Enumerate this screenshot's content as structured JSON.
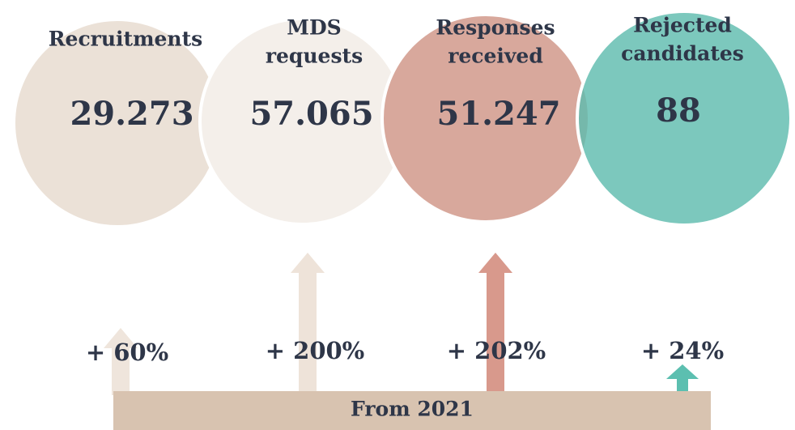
{
  "circles": [
    {
      "label": [
        "Recruitments"
      ],
      "value": "29.273",
      "change": "+ 60%"
    },
    {
      "label": [
        "MDS",
        "requests"
      ],
      "value": "57.065",
      "change": "+ 200%"
    },
    {
      "label": [
        "Responses",
        "received"
      ],
      "value": "51.247",
      "change": "+ 202%"
    },
    {
      "label": [
        "Rejected",
        "candidates"
      ],
      "value": "88",
      "change": "+ 24%"
    }
  ],
  "footer": "From 2021"
}
